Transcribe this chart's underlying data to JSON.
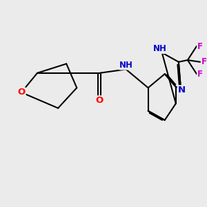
{
  "background_color": "#ebebeb",
  "bond_color": "#000000",
  "bond_width": 1.5,
  "atom_colors": {
    "O": "#ff0000",
    "N": "#0000cc",
    "F": "#cc00cc",
    "H": "#558888",
    "C": "#000000"
  },
  "font_size": 8.5,
  "fig_width": 3.0,
  "fig_height": 3.0,
  "dpi": 100
}
